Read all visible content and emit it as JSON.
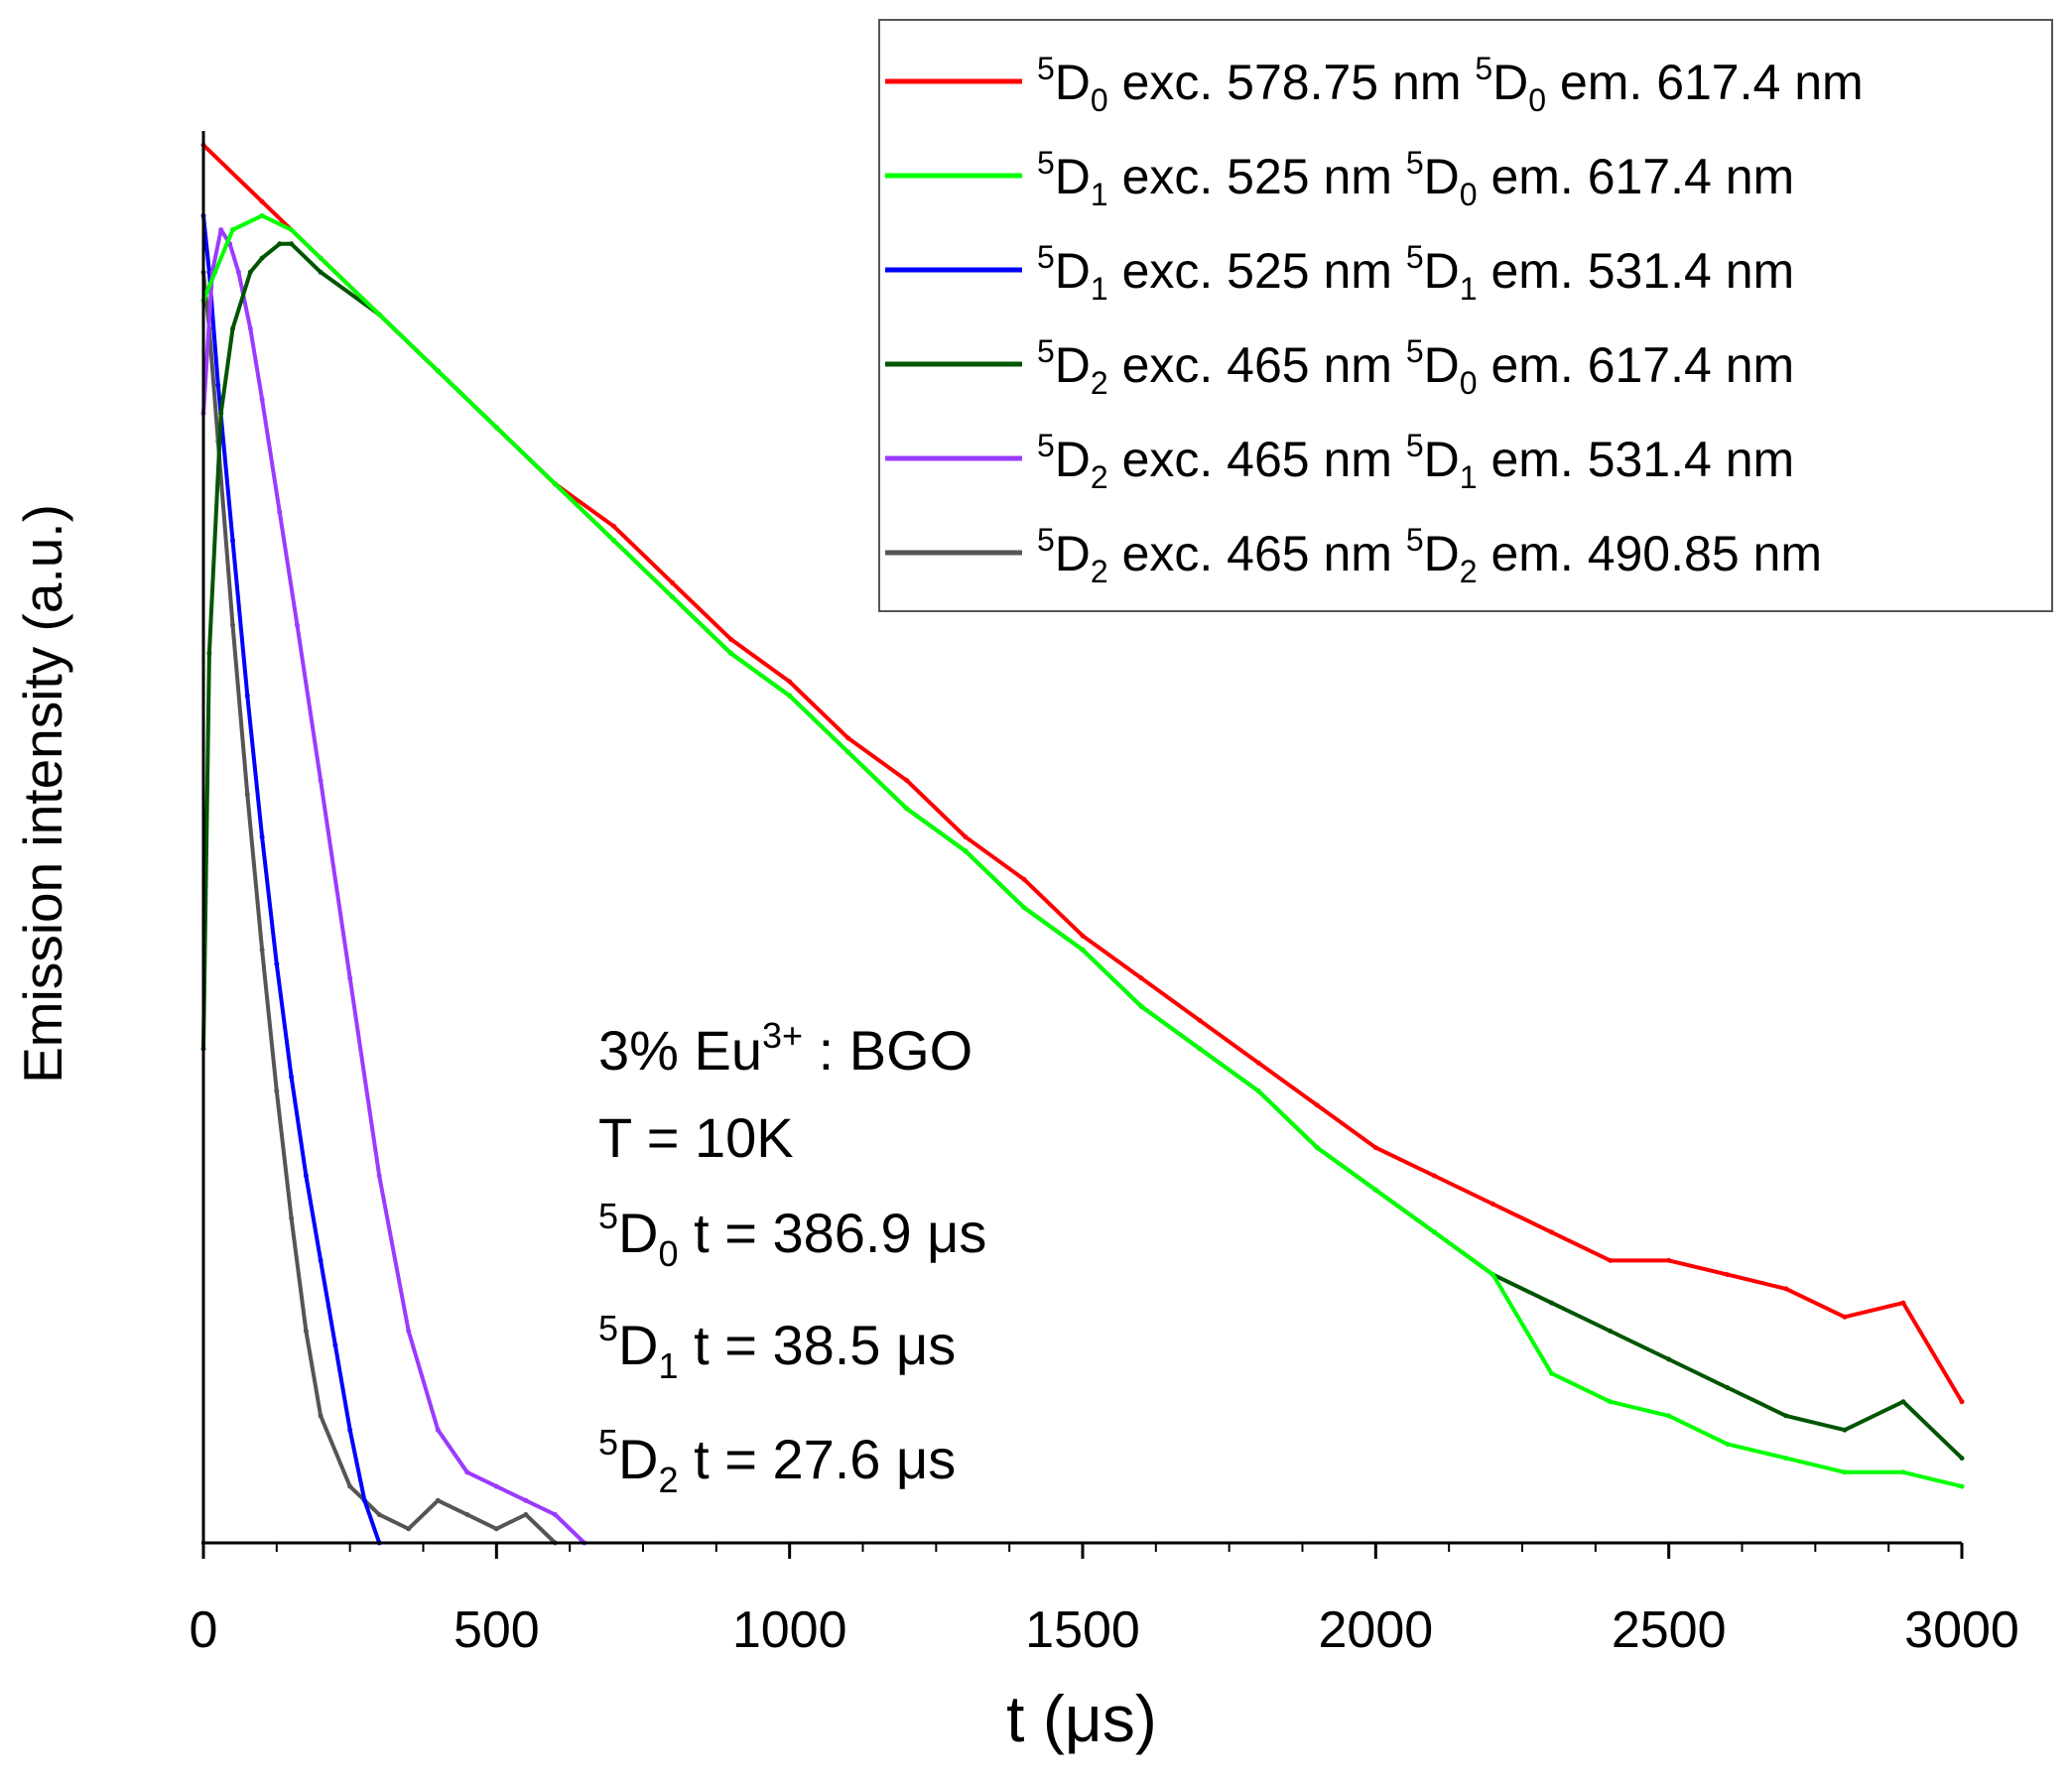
{
  "chart_data": {
    "type": "line",
    "title": "",
    "xlabel": "t (μs)",
    "ylabel": "Emission intensity (a.u.)",
    "xlim": [
      0,
      3000
    ],
    "ylim": [
      0,
      1
    ],
    "grid": false,
    "legend_position": "top-right",
    "x_ticks": [
      {
        "value": 0,
        "label": "0"
      },
      {
        "value": 500,
        "label": "500"
      },
      {
        "value": 1000,
        "label": "1000"
      },
      {
        "value": 1500,
        "label": "1500"
      },
      {
        "value": 2000,
        "label": "2000"
      },
      {
        "value": 2500,
        "label": "2500"
      },
      {
        "value": 3000,
        "label": "3000"
      }
    ],
    "series": [
      {
        "key": "s1",
        "color": "#ff0000",
        "label": {
          "level": "5",
          "state": "D",
          "sub": "0",
          "rest": " exc. 578.75 nm ",
          "level2": "5",
          "state2": "D",
          "sub2": "0",
          "rest2": " em. 617.4 nm"
        },
        "x": [
          0,
          100,
          200,
          300,
          400,
          500,
          600,
          700,
          800,
          900,
          1000,
          1100,
          1200,
          1300,
          1400,
          1500,
          1600,
          1700,
          1800,
          1900,
          2000,
          2100,
          2200,
          2300,
          2400,
          2500,
          2600,
          2700,
          2800,
          2900,
          3000
        ],
        "y": [
          0.99,
          0.95,
          0.91,
          0.87,
          0.83,
          0.79,
          0.75,
          0.72,
          0.68,
          0.64,
          0.61,
          0.57,
          0.54,
          0.5,
          0.47,
          0.43,
          0.4,
          0.37,
          0.34,
          0.31,
          0.28,
          0.26,
          0.24,
          0.22,
          0.2,
          0.2,
          0.19,
          0.18,
          0.16,
          0.17,
          0.1
        ]
      },
      {
        "key": "s2",
        "color": "#00ff00",
        "label": {
          "level": "5",
          "state": "D",
          "sub": "1",
          "rest": " exc. 525 nm ",
          "level2": "5",
          "state2": "D",
          "sub2": "0",
          "rest2": " em. 617.4 nm"
        },
        "x": [
          0,
          20,
          50,
          100,
          150,
          200,
          300,
          400,
          500,
          600,
          700,
          800,
          900,
          1000,
          1100,
          1200,
          1300,
          1400,
          1500,
          1600,
          1700,
          1800,
          1900,
          2000,
          2100,
          2200,
          2300,
          2400,
          2500,
          2600,
          2700,
          2800,
          2900,
          3000
        ],
        "y": [
          0.88,
          0.9,
          0.93,
          0.94,
          0.93,
          0.91,
          0.87,
          0.83,
          0.79,
          0.75,
          0.71,
          0.67,
          0.63,
          0.6,
          0.56,
          0.52,
          0.49,
          0.45,
          0.42,
          0.38,
          0.35,
          0.32,
          0.28,
          0.25,
          0.22,
          0.19,
          0.12,
          0.1,
          0.09,
          0.07,
          0.06,
          0.05,
          0.05,
          0.04
        ]
      },
      {
        "key": "s3",
        "color": "#0000ff",
        "label": {
          "level": "5",
          "state": "D",
          "sub": "1",
          "rest": " exc. 525 nm ",
          "level2": "5",
          "state2": "D",
          "sub2": "1",
          "rest2": " em. 531.4 nm"
        },
        "x": [
          0,
          10,
          25,
          50,
          75,
          100,
          125,
          150,
          175,
          200,
          225,
          250,
          275,
          300
        ],
        "y": [
          0.94,
          0.9,
          0.82,
          0.71,
          0.6,
          0.5,
          0.41,
          0.33,
          0.26,
          0.2,
          0.14,
          0.08,
          0.03,
          0.0
        ]
      },
      {
        "key": "s4",
        "color": "#005500",
        "label": {
          "level": "5",
          "state": "D",
          "sub": "2",
          "rest": " exc. 465 nm ",
          "level2": "5",
          "state2": "D",
          "sub2": "0",
          "rest2": " em. 617.4 nm"
        },
        "x": [
          0,
          10,
          30,
          50,
          80,
          100,
          130,
          150,
          200,
          300,
          400,
          500,
          600,
          700,
          800,
          900,
          1000,
          1100,
          1200,
          1300,
          1400,
          1500,
          1600,
          1700,
          1800,
          1900,
          2000,
          2100,
          2200,
          2300,
          2400,
          2500,
          2600,
          2700,
          2800,
          2900,
          3000
        ],
        "y": [
          0.35,
          0.63,
          0.8,
          0.86,
          0.9,
          0.91,
          0.92,
          0.92,
          0.9,
          0.87,
          0.83,
          0.79,
          0.75,
          0.71,
          0.67,
          0.63,
          0.6,
          0.56,
          0.52,
          0.49,
          0.45,
          0.42,
          0.38,
          0.35,
          0.32,
          0.28,
          0.25,
          0.22,
          0.19,
          0.17,
          0.15,
          0.13,
          0.11,
          0.09,
          0.08,
          0.1,
          0.06
        ]
      },
      {
        "key": "s5",
        "color": "#9b3bff",
        "label": {
          "level": "5",
          "state": "D",
          "sub": "2",
          "rest": " exc. 465 nm ",
          "level2": "5",
          "state2": "D",
          "sub2": "1",
          "rest2": " em. 531.4 nm"
        },
        "x": [
          0,
          15,
          30,
          45,
          60,
          80,
          100,
          130,
          160,
          200,
          250,
          300,
          350,
          400,
          450,
          500,
          550,
          600,
          650
        ],
        "y": [
          0.8,
          0.9,
          0.93,
          0.92,
          0.9,
          0.86,
          0.81,
          0.73,
          0.65,
          0.54,
          0.4,
          0.26,
          0.15,
          0.08,
          0.05,
          0.04,
          0.03,
          0.02,
          0.0
        ]
      },
      {
        "key": "s6",
        "color": "#555555",
        "label": {
          "level": "5",
          "state": "D",
          "sub": "2",
          "rest": " exc. 465 nm ",
          "level2": "5",
          "state2": "D",
          "sub2": "2",
          "rest2": " em. 490.85 nm"
        },
        "x": [
          0,
          10,
          25,
          50,
          75,
          100,
          125,
          150,
          175,
          200,
          250,
          300,
          350,
          400,
          450,
          500,
          550,
          600
        ],
        "y": [
          0.9,
          0.86,
          0.78,
          0.65,
          0.53,
          0.42,
          0.32,
          0.23,
          0.15,
          0.09,
          0.04,
          0.02,
          0.01,
          0.03,
          0.02,
          0.01,
          0.02,
          0.0
        ]
      }
    ],
    "annotations": [
      {
        "key": "sample",
        "pre": "3% Eu",
        "sup": "3+",
        "post": " : BGO"
      },
      {
        "key": "temp",
        "text": "T = 10K"
      },
      {
        "key": "tau0",
        "level": "5",
        "state": "D",
        "sub": "0",
        "post": " t = 386.9 μs"
      },
      {
        "key": "tau1",
        "level": "5",
        "state": "D",
        "sub": "1",
        "post": " t = 38.5 μs"
      },
      {
        "key": "tau2",
        "level": "5",
        "state": "D",
        "sub": "2",
        "post": " t = 27.6 μs"
      }
    ]
  }
}
